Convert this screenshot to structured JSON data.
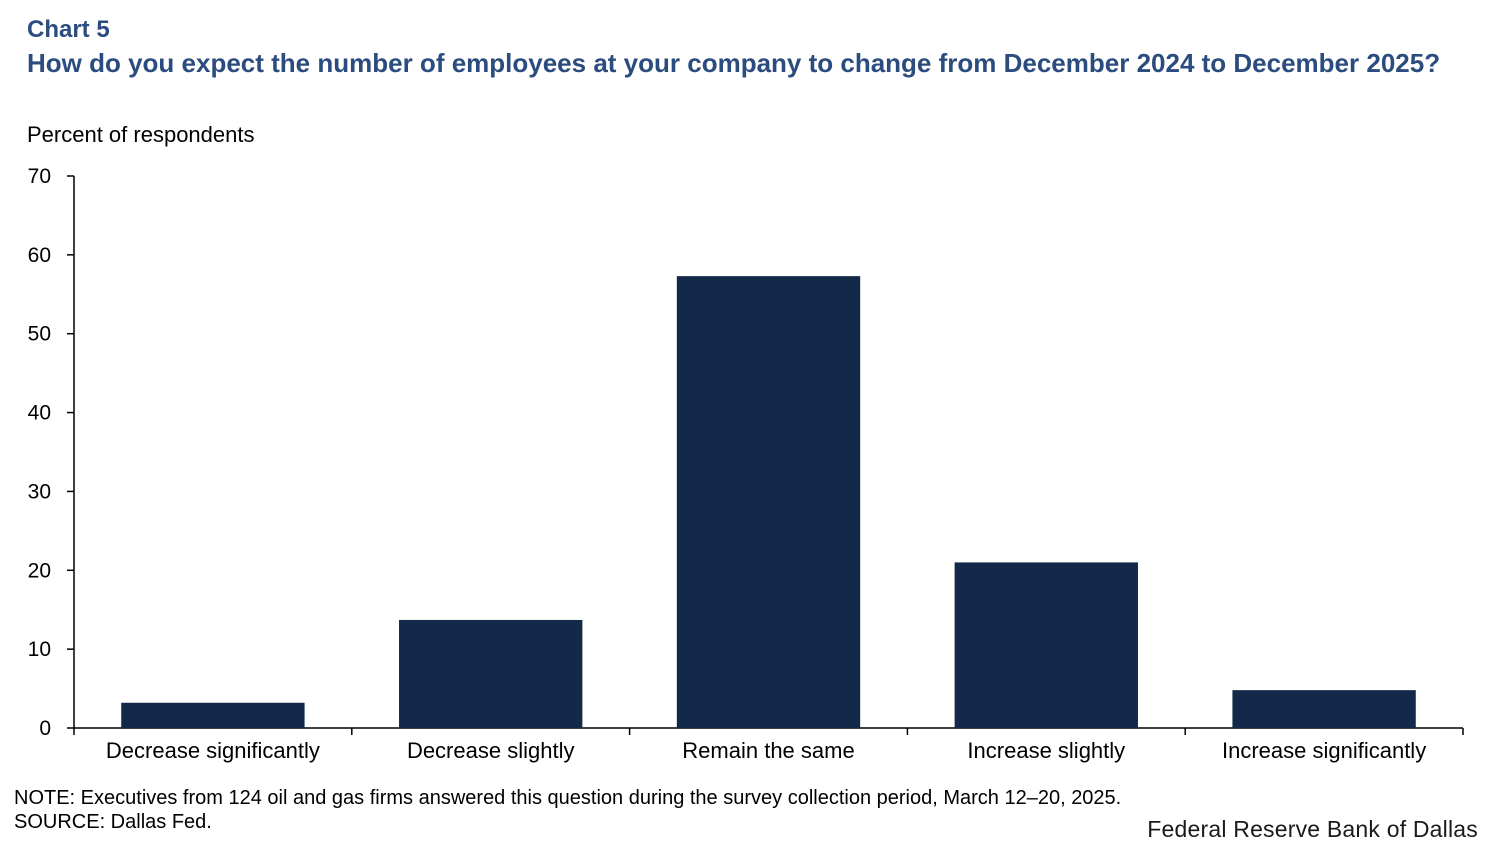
{
  "header": {
    "chart_number": "Chart 5",
    "title": "How do you expect the number of employees at your company to change from December 2024 to December 2025?"
  },
  "chart_data": {
    "type": "bar",
    "title": "How do you expect the number of employees at your company to change from December 2024 to December 2025?",
    "ylabel": "Percent of respondents",
    "xlabel": "",
    "categories": [
      "Decrease significantly",
      "Decrease slightly",
      "Remain the same",
      "Increase slightly",
      "Increase significantly"
    ],
    "values": [
      3.2,
      13.7,
      57.3,
      21.0,
      4.8
    ],
    "ylim": [
      0,
      70
    ],
    "yticks": [
      0,
      10,
      20,
      30,
      40,
      50,
      60,
      70
    ],
    "bar_color": "#12294a",
    "grid": false,
    "legend": "none"
  },
  "footer": {
    "note": "NOTE: Executives from 124 oil and gas firms answered this question during the survey collection period, March 12–20, 2025.",
    "source": "SOURCE: Dallas Fed.",
    "logo_text": "Federal Reserve Bank of Dallas"
  }
}
